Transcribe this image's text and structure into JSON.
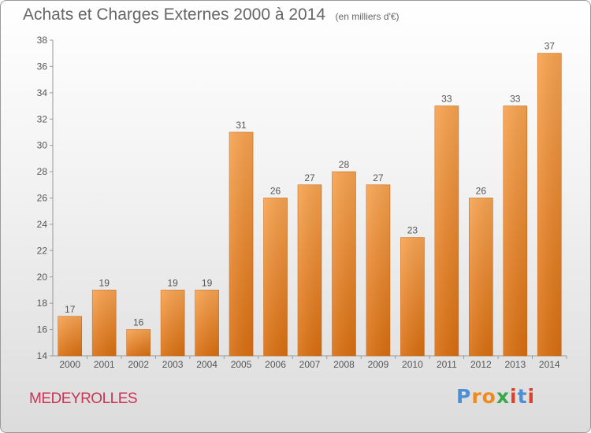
{
  "chart_data": {
    "type": "bar",
    "title": "Achats et Charges Externes 2000 à 2014",
    "unit_label": "(en milliers d'€)",
    "categories": [
      "2000",
      "2001",
      "2002",
      "2003",
      "2004",
      "2005",
      "2006",
      "2007",
      "2008",
      "2009",
      "2010",
      "2011",
      "2012",
      "2013",
      "2014"
    ],
    "values": [
      17,
      19,
      16,
      19,
      19,
      31,
      26,
      27,
      28,
      27,
      23,
      33,
      26,
      33,
      37
    ],
    "value_labels": [
      "17",
      "19",
      "16",
      "19",
      "19",
      "31",
      "26",
      "27",
      "28",
      "27",
      "23",
      "33",
      "26",
      "33",
      "37"
    ],
    "ylim": [
      14,
      38
    ],
    "yticks": [
      "14",
      "16",
      "18",
      "20",
      "22",
      "24",
      "26",
      "28",
      "30",
      "32",
      "34",
      "36",
      "38"
    ],
    "grid": false,
    "bar_color": "#f0912e"
  },
  "footer": {
    "location": "MEDEYROLLES",
    "brand": [
      "P",
      "r",
      "o",
      "x",
      "i",
      "t",
      "i"
    ],
    "brand_colors": [
      "#4a8fd8",
      "#f08a1c",
      "#f08a1c",
      "#3aa84a",
      "#e0402a",
      "#4a8fd8",
      "#e0402a"
    ]
  }
}
